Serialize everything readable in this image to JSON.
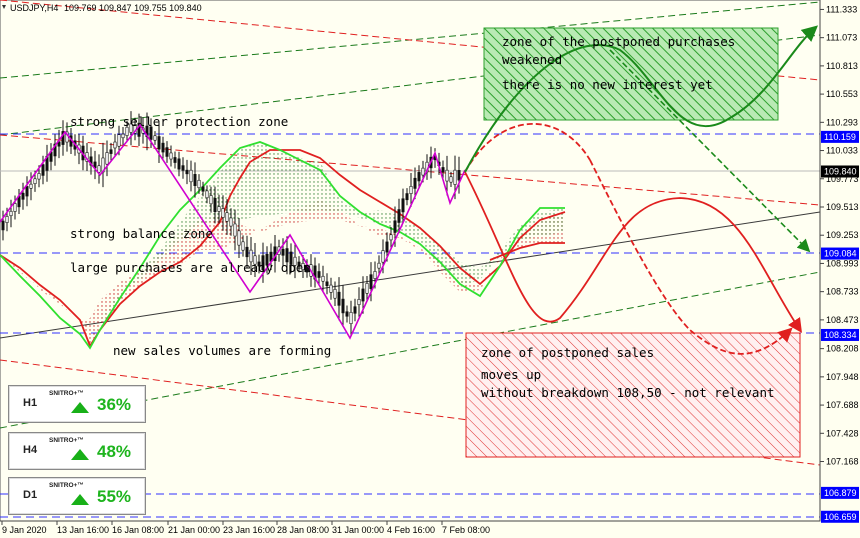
{
  "header": {
    "symbol": "USDJPY,H4",
    "ohlc": "109.769 109.847 109.755 109.840"
  },
  "chart_data": {
    "type": "candlestick",
    "symbol": "USDJPY",
    "timeframe": "H4",
    "y_ticks": [
      "111.333",
      "111.073",
      "110.813",
      "110.553",
      "110.293",
      "110.033",
      "109.773",
      "109.513",
      "109.253",
      "108.993",
      "108.733",
      "108.473",
      "108.208",
      "107.948",
      "107.688",
      "107.428",
      "107.168"
    ],
    "x_ticks": [
      "9 Jan 2020",
      "13 Jan 16:00",
      "16 Jan 08:00",
      "21 Jan 00:00",
      "23 Jan 16:00",
      "28 Jan 08:00",
      "31 Jan 00:00",
      "4 Feb 16:00",
      "7 Feb 08:00"
    ],
    "price_markers": [
      {
        "label": "110.159",
        "color": "#0000ff"
      },
      {
        "label": "109.840",
        "color": "#000000"
      },
      {
        "label": "109.084",
        "color": "#0000ff"
      },
      {
        "label": "108.334",
        "color": "#0000ff"
      },
      {
        "label": "106.879",
        "color": "#0000ff"
      },
      {
        "label": "106.659",
        "color": "#0000ff"
      }
    ],
    "ylim": [
      106.62,
      111.42
    ],
    "annotations": [
      "strong seller protection zone",
      "strong balance zone",
      "large purchases are already open",
      "new sales volumes are forming",
      "zone of the postponed purchases",
      "weakened",
      "there is no new interest yet",
      "zone of postponed sales",
      "moves up",
      "without breakdown 108,50 - not relevant"
    ],
    "grid": false
  },
  "annotations": {
    "seller_zone": "strong seller protection zone",
    "balance_zone": "strong balance zone",
    "purchases_open": "large purchases are already open",
    "sales_forming": "new sales volumes are forming",
    "purchase_zone_1": "zone of the postponed purchases",
    "purchase_zone_2": "weakened",
    "purchase_zone_3": "there is no new interest yet",
    "sales_zone_1": "zone of postponed sales",
    "sales_zone_2": "moves up",
    "sales_zone_3": "without breakdown 108,50 - not relevant"
  },
  "badges": [
    {
      "tf": "H1",
      "brand": "SNITRO+™",
      "pct": "36%"
    },
    {
      "tf": "H4",
      "brand": "SNITRO+™",
      "pct": "48%"
    },
    {
      "tf": "D1",
      "brand": "SNITRO+™",
      "pct": "55%"
    }
  ],
  "colors": {
    "bull_zone": "#2ea02e",
    "bear_zone": "#e02020",
    "zigzag": "#d000d0",
    "level": "#0000ff",
    "candles": "#000000"
  }
}
